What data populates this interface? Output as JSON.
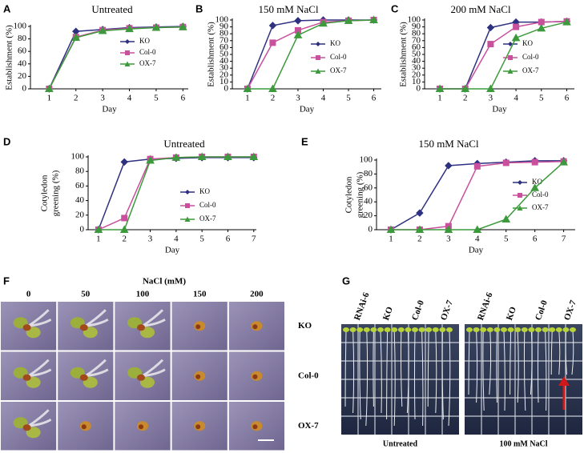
{
  "chart_data": [
    {
      "type": "line",
      "label": "A",
      "title": "Untreated",
      "x_label": "Day",
      "y_label": [
        "Establishment (%)"
      ],
      "x": [
        1,
        2,
        3,
        4,
        5,
        6
      ],
      "xlim": [
        0.3,
        6.2
      ],
      "xticks": [
        1,
        2,
        3,
        4,
        5,
        6
      ],
      "ylim": [
        0,
        100
      ],
      "yticks": [
        0,
        20,
        40,
        60,
        80,
        100
      ],
      "series": [
        {
          "name": "KO",
          "color": "#2e3180",
          "marker": "diamond",
          "values": [
            0,
            92,
            95,
            98,
            99,
            100
          ]
        },
        {
          "name": "Col-0",
          "color": "#c9509c",
          "marker": "square",
          "values": [
            0,
            83,
            94,
            97,
            98,
            99
          ]
        },
        {
          "name": "OX-7",
          "color": "#3c9a3c",
          "marker": "triangle",
          "values": [
            0,
            82,
            93,
            96,
            98,
            99
          ]
        }
      ]
    },
    {
      "type": "line",
      "label": "B",
      "title": "150 mM NaCl",
      "x_label": "Day",
      "y_label": [
        "Establishment (%)"
      ],
      "x": [
        1,
        2,
        3,
        4,
        5,
        6
      ],
      "xlim": [
        0.4,
        6.3
      ],
      "xticks": [
        1,
        2,
        3,
        4,
        5,
        6
      ],
      "ylim": [
        0,
        100
      ],
      "yticks": [
        0,
        10,
        20,
        30,
        40,
        50,
        60,
        70,
        80,
        90,
        100
      ],
      "series": [
        {
          "name": "KO",
          "color": "#2e3180",
          "marker": "diamond",
          "values": [
            0,
            92,
            99,
            100,
            100,
            100
          ]
        },
        {
          "name": "Col-0",
          "color": "#c9509c",
          "marker": "square",
          "values": [
            0,
            67,
            85,
            97,
            99,
            100
          ]
        },
        {
          "name": "OX-7",
          "color": "#3c9a3c",
          "marker": "triangle",
          "values": [
            0,
            0,
            78,
            95,
            99,
            100
          ]
        }
      ]
    },
    {
      "type": "line",
      "label": "C",
      "title": "200 mM NaCl",
      "x_label": "Day",
      "y_label": [
        "Establishment (%)"
      ],
      "x": [
        1,
        2,
        3,
        4,
        5,
        6
      ],
      "xlim": [
        0.4,
        6.3
      ],
      "xticks": [
        1,
        2,
        3,
        4,
        5,
        6
      ],
      "ylim": [
        0,
        100
      ],
      "yticks": [
        0,
        10,
        20,
        30,
        40,
        50,
        60,
        70,
        80,
        90,
        100
      ],
      "series": [
        {
          "name": "KO",
          "color": "#2e3180",
          "marker": "diamond",
          "values": [
            0,
            0,
            89,
            97,
            97,
            98
          ]
        },
        {
          "name": "Col-0",
          "color": "#c9509c",
          "marker": "square",
          "values": [
            0,
            0,
            65,
            90,
            97,
            98
          ]
        },
        {
          "name": "OX-7",
          "color": "#3c9a3c",
          "marker": "triangle",
          "values": [
            0,
            0,
            0,
            74,
            88,
            97
          ]
        }
      ]
    },
    {
      "type": "line",
      "label": "D",
      "title": "Untreated",
      "x_label": "Day",
      "y_label": [
        "Cotyledon",
        "greening (%)"
      ],
      "x": [
        1,
        2,
        3,
        4,
        5,
        6,
        7
      ],
      "xlim": [
        0.6,
        7.1
      ],
      "xticks": [
        1,
        2,
        3,
        4,
        5,
        6,
        7
      ],
      "ylim": [
        0,
        100
      ],
      "yticks": [
        0,
        20,
        40,
        60,
        80,
        100
      ],
      "series": [
        {
          "name": "KO",
          "color": "#2e3180",
          "marker": "diamond",
          "values": [
            0,
            93,
            97,
            98,
            99,
            99,
            99
          ]
        },
        {
          "name": "Col-0",
          "color": "#c9509c",
          "marker": "square",
          "values": [
            0,
            16,
            97,
            99,
            100,
            100,
            100
          ]
        },
        {
          "name": "OX-7",
          "color": "#3c9a3c",
          "marker": "triangle",
          "values": [
            0,
            0,
            95,
            99,
            100,
            100,
            100
          ]
        }
      ]
    },
    {
      "type": "line",
      "label": "E",
      "title": "150 mM NaCl",
      "x_label": "Day",
      "y_label": [
        "Cotyledon",
        "greening (%)"
      ],
      "x": [
        1,
        2,
        3,
        4,
        5,
        6,
        7
      ],
      "xlim": [
        0.5,
        7.4
      ],
      "xticks": [
        1,
        2,
        3,
        4,
        5,
        6,
        7
      ],
      "ylim": [
        0,
        100
      ],
      "yticks": [
        0,
        20,
        40,
        60,
        80,
        100
      ],
      "series": [
        {
          "name": "KO",
          "color": "#2e3180",
          "marker": "diamond",
          "values": [
            0,
            24,
            92,
            95,
            97,
            99,
            99
          ]
        },
        {
          "name": "Col-0",
          "color": "#c9509c",
          "marker": "square",
          "values": [
            0,
            0,
            5,
            91,
            96,
            97,
            98
          ]
        },
        {
          "name": "OX-7",
          "color": "#3c9a3c",
          "marker": "triangle",
          "values": [
            0,
            0,
            0,
            0,
            15,
            60,
            97
          ]
        }
      ]
    }
  ],
  "panel_F": {
    "label": "F",
    "title": "NaCl (mM)",
    "columns": [
      "0",
      "50",
      "100",
      "150",
      "200"
    ],
    "rows": [
      "KO",
      "Col-0",
      "OX-7"
    ]
  },
  "panel_G": {
    "label": "G",
    "columns": [
      "RNAi-6",
      "KO",
      "Col-0",
      "OX-7"
    ],
    "conditions": [
      "Untreated",
      "100 mM NaCl"
    ]
  }
}
